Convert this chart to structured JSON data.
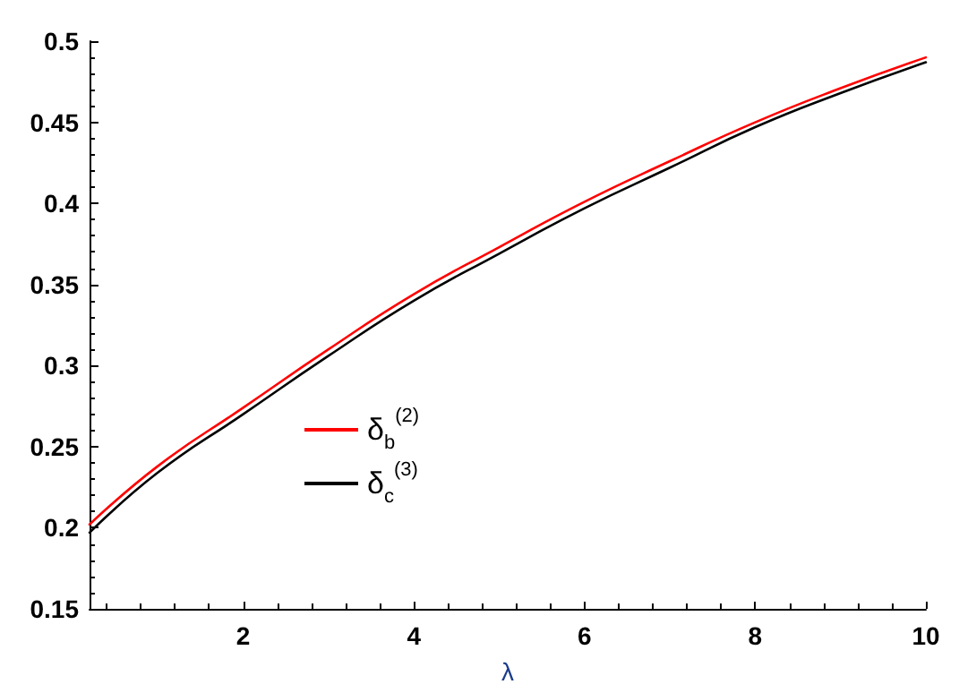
{
  "chart_data": {
    "type": "line",
    "xlabel": "λ",
    "x": [
      0.2,
      1,
      2,
      3,
      4,
      5,
      6,
      7,
      8,
      9,
      10
    ],
    "series": [
      {
        "name": "δ$_{b}$$^{(2)}$",
        "color": "#ff0000",
        "values": [
          0.202,
          0.238,
          0.274,
          0.31,
          0.344,
          0.373,
          0.401,
          0.426,
          0.45,
          0.471,
          0.49
        ]
      },
      {
        "name": "δ$_{c}$$^{(3)}$",
        "color": "#000000",
        "values": [
          0.197,
          0.234,
          0.27,
          0.306,
          0.34,
          0.369,
          0.397,
          0.422,
          0.447,
          0.468,
          0.487
        ]
      }
    ],
    "xlim": [
      0.2,
      10
    ],
    "xticks": [
      2,
      4,
      6,
      8,
      10
    ],
    "ylim": [
      0.15,
      0.5
    ],
    "yticks": [
      0.15,
      0.2,
      0.25,
      0.3,
      0.35,
      0.4,
      0.45,
      0.5
    ],
    "grid": false,
    "legend": "left",
    "marker": "none",
    "line_style": "solid"
  }
}
